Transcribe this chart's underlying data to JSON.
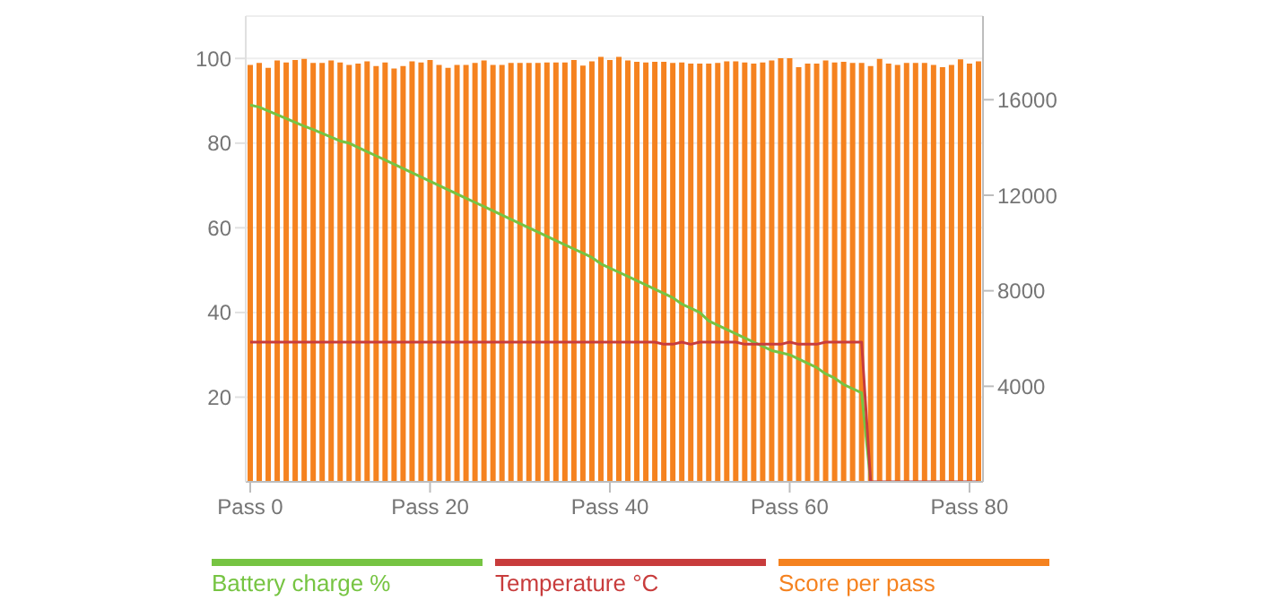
{
  "chart_data": {
    "type": "bar",
    "categories": [
      "Pass 0",
      null,
      null,
      null,
      null,
      null,
      null,
      null,
      null,
      null,
      null,
      null,
      null,
      null,
      null,
      null,
      null,
      null,
      null,
      null,
      "Pass 20",
      null,
      null,
      null,
      null,
      null,
      null,
      null,
      null,
      null,
      null,
      null,
      null,
      null,
      null,
      null,
      null,
      null,
      null,
      null,
      "Pass 40",
      null,
      null,
      null,
      null,
      null,
      null,
      null,
      null,
      null,
      null,
      null,
      null,
      null,
      null,
      null,
      null,
      null,
      null,
      null,
      "Pass 60",
      null,
      null,
      null,
      null,
      null,
      null,
      null,
      null,
      null,
      null,
      null,
      null,
      null,
      null,
      null,
      null,
      null,
      null,
      null,
      "Pass 80",
      null
    ],
    "series": [
      {
        "name": "Battery charge %",
        "type": "line",
        "color": "#76c442",
        "values": [
          89,
          88.5,
          87.6,
          86.7,
          85.8,
          84.9,
          84,
          83.2,
          82.3,
          81.4,
          80.5,
          80,
          79,
          78,
          77,
          76,
          75,
          74,
          73,
          72,
          71,
          70,
          69,
          68,
          67,
          66,
          65,
          64,
          63,
          62,
          61,
          60,
          59,
          58,
          57,
          56,
          55,
          54,
          53,
          51.5,
          50.5,
          49.5,
          48.5,
          47.5,
          46.5,
          45.5,
          44.5,
          43.5,
          42,
          41,
          40,
          38,
          37,
          36,
          35,
          34,
          33,
          32,
          31,
          30.5,
          30,
          29,
          28,
          27,
          25.5,
          24.5,
          23,
          22,
          21,
          0,
          null,
          null,
          null,
          null,
          null,
          null,
          null,
          null,
          null,
          null,
          null,
          null
        ]
      },
      {
        "name": "Temperature °C",
        "type": "line",
        "color": "#c83c3c",
        "values": [
          33,
          33,
          33,
          33,
          33,
          33,
          33,
          33,
          33,
          33,
          33,
          33,
          33,
          33,
          33,
          33,
          33,
          33,
          33,
          33,
          33,
          33,
          33,
          33,
          33,
          33,
          33,
          33,
          33,
          33,
          33,
          33,
          33,
          33,
          33,
          33,
          33,
          33,
          33,
          33,
          33,
          33,
          33,
          33,
          33,
          33,
          32.5,
          32.5,
          33,
          32.5,
          33,
          33,
          33,
          33,
          33,
          32.5,
          32.5,
          32.5,
          32.5,
          32.5,
          33,
          32.5,
          32.5,
          32.5,
          33,
          33,
          33,
          33,
          33,
          0,
          0,
          0,
          0,
          0,
          0,
          0,
          0,
          0,
          0,
          0,
          0,
          0
        ]
      },
      {
        "name": "Score per pass",
        "axis": "y2",
        "color": "#f5821f",
        "values": [
          17460,
          17540,
          17330,
          17640,
          17560,
          17660,
          17710,
          17540,
          17540,
          17640,
          17560,
          17460,
          17510,
          17610,
          17410,
          17560,
          17310,
          17410,
          17610,
          17560,
          17660,
          17460,
          17330,
          17460,
          17460,
          17540,
          17640,
          17460,
          17460,
          17540,
          17540,
          17540,
          17540,
          17560,
          17560,
          17560,
          17660,
          17430,
          17610,
          17790,
          17660,
          17790,
          17640,
          17590,
          17560,
          17590,
          17590,
          17540,
          17560,
          17510,
          17510,
          17510,
          17540,
          17610,
          17610,
          17560,
          17510,
          17560,
          17640,
          17740,
          17740,
          17360,
          17510,
          17510,
          17640,
          17560,
          17590,
          17540,
          17540,
          17410,
          17710,
          17510,
          17460,
          17540,
          17540,
          17540,
          17460,
          17360,
          17460,
          17690,
          17510,
          17610
        ]
      }
    ],
    "ylim": [
      0,
      110
    ],
    "yticks": [
      20,
      40,
      60,
      80,
      100
    ],
    "y2lim": [
      0,
      19500
    ],
    "y2ticks": [
      4000,
      8000,
      12000,
      16000
    ],
    "grid": "y",
    "legend": "bottom",
    "marker": "none",
    "line_style": "solid"
  }
}
